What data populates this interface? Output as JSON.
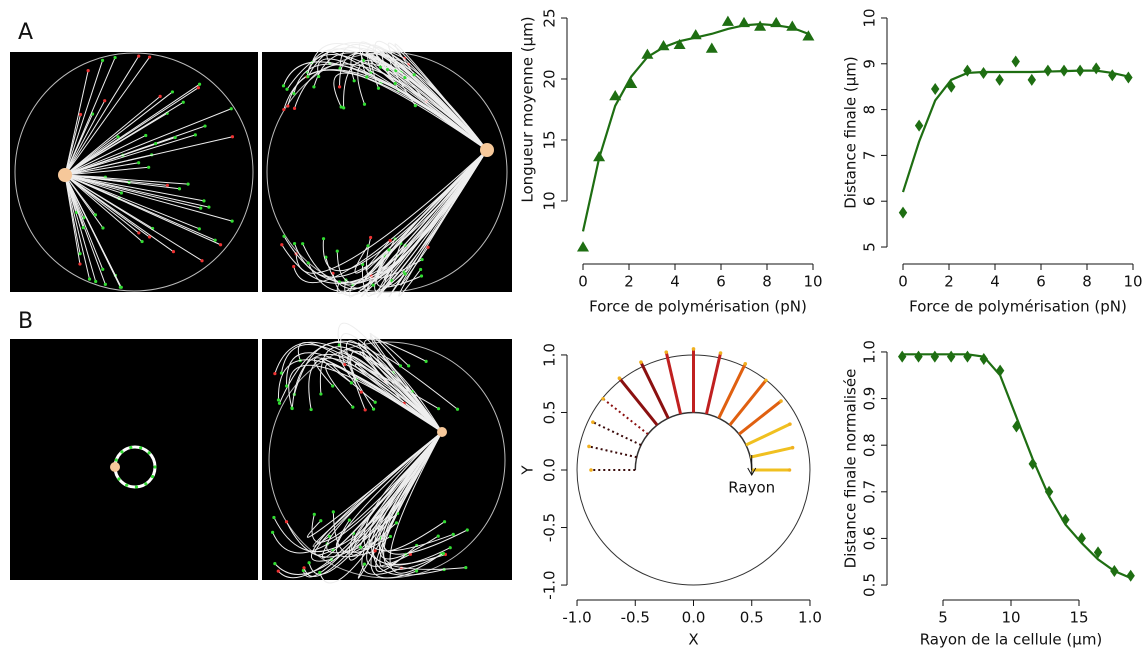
{
  "panel_labels": [
    "A",
    "B"
  ],
  "chart_data": [
    {
      "type": "scatter-fit",
      "x_label": "Force de polymérisation (pN)",
      "y_label": "Longueur moyenne (µm)",
      "marker": "triangle",
      "color": "#1e6e12",
      "x": [
        0,
        0.7,
        1.4,
        2.1,
        2.8,
        3.5,
        4.2,
        4.9,
        5.6,
        6.3,
        7,
        7.7,
        8.4,
        9.1,
        9.8
      ],
      "values": [
        6.2,
        13.6,
        18.6,
        19.6,
        22,
        22.7,
        22.8,
        23.6,
        22.5,
        24.7,
        24.6,
        24.3,
        24.6,
        24.3,
        23.5
      ],
      "fit": [
        7.5,
        13.5,
        17.8,
        20.2,
        21.8,
        22.6,
        23.1,
        23.4,
        23.7,
        24.1,
        24.4,
        24.5,
        24.4,
        24.2,
        23.7
      ],
      "xlim": [
        -0.4,
        10.4
      ],
      "xticks": [
        0,
        2,
        4,
        6,
        8,
        10
      ],
      "ylim": [
        5.4,
        25.6
      ],
      "yticks": [
        10,
        15,
        20,
        25
      ]
    },
    {
      "type": "scatter-fit",
      "x_label": "Force de polymérisation (pN)",
      "y_label": "Distance finale (µm)",
      "marker": "diamond",
      "color": "#1e6e12",
      "x": [
        0,
        0.7,
        1.4,
        2.1,
        2.8,
        3.5,
        4.2,
        4.9,
        5.6,
        6.3,
        7,
        7.7,
        8.4,
        9.1,
        9.8
      ],
      "values": [
        5.75,
        7.65,
        8.45,
        8.5,
        8.85,
        8.8,
        8.65,
        9.05,
        8.65,
        8.85,
        8.85,
        8.85,
        8.9,
        8.75,
        8.7
      ],
      "fit": [
        6.2,
        7.3,
        8.2,
        8.65,
        8.8,
        8.82,
        8.82,
        8.82,
        8.82,
        8.83,
        8.84,
        8.85,
        8.85,
        8.8,
        8.72
      ],
      "xlim": [
        -0.4,
        10.4
      ],
      "xticks": [
        0,
        2,
        4,
        6,
        8,
        10
      ],
      "ylim": [
        4.9,
        10.1
      ],
      "yticks": [
        5,
        6,
        7,
        8,
        9,
        10
      ]
    },
    {
      "type": "polar",
      "x_label": "X",
      "y_label": "Y",
      "annotation": "Rayon",
      "xlim": [
        -1.05,
        1.05
      ],
      "xticks": [
        {
          "value": -1,
          "label": "-1.0"
        },
        {
          "value": -0.5,
          "label": "-0.5"
        },
        {
          "value": 0,
          "label": "0.0"
        },
        {
          "value": 0.5,
          "label": "0.5"
        },
        {
          "value": 1,
          "label": "1.0"
        }
      ],
      "ylim": [
        -1.05,
        1.05
      ],
      "yticks": [
        {
          "value": -1,
          "label": "-1.0"
        },
        {
          "value": -0.5,
          "label": "-0.5"
        },
        {
          "value": 0,
          "label": "0.0"
        },
        {
          "value": 0.5,
          "label": "0.5"
        },
        {
          "value": 1,
          "label": "1.0"
        }
      ]
    },
    {
      "type": "scatter-fit",
      "x_label": "Rayon de la cellule (µm)",
      "y_label": "Distance finale normalisée",
      "marker": "diamond",
      "color": "#1e6e12",
      "x": [
        2,
        3.2,
        4.4,
        5.6,
        6.8,
        8,
        9.2,
        10.4,
        11.6,
        12.8,
        14,
        15.2,
        16.4,
        17.6,
        18.8
      ],
      "values": [
        0.99,
        0.99,
        0.99,
        0.99,
        0.99,
        0.985,
        0.96,
        0.84,
        0.76,
        0.7,
        0.64,
        0.6,
        0.57,
        0.53,
        0.52
      ],
      "fit": [
        0.995,
        0.995,
        0.995,
        0.995,
        0.995,
        0.99,
        0.95,
        0.86,
        0.77,
        0.69,
        0.63,
        0.59,
        0.555,
        0.53,
        0.515
      ],
      "xlim": [
        1.5,
        19.5
      ],
      "xticks": [
        5,
        10,
        15
      ],
      "ylim": [
        0.49,
        1.01
      ],
      "yticks": [
        {
          "value": 0.5,
          "label": "0.5"
        },
        {
          "value": 0.6,
          "label": "0.6"
        },
        {
          "value": 0.7,
          "label": "0.7"
        },
        {
          "value": 0.8,
          "label": "0.8"
        },
        {
          "value": 0.9,
          "label": "0.9"
        },
        {
          "value": 1,
          "label": "1.0"
        }
      ]
    }
  ]
}
